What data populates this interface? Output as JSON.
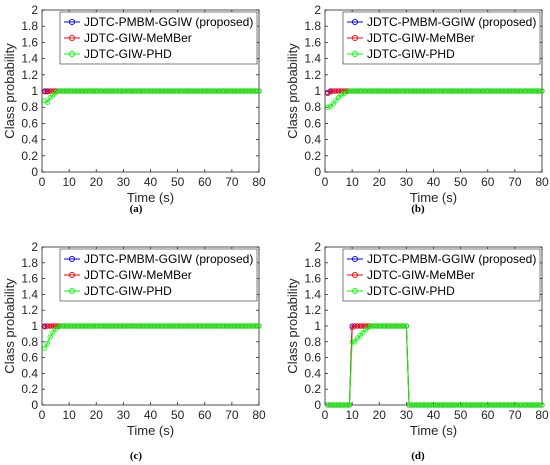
{
  "colors": {
    "JDTC-PMBM-GGIW (proposed)": "#0000ff",
    "JDTC-GIW-MeMBer": "#ff0000",
    "JDTC-GIW-PHD": "#00ff00",
    "axis": "#262626"
  },
  "chart_data": [
    {
      "type": "line",
      "caption": "(a)",
      "xlabel": "Time (s)",
      "ylabel": "Class probability",
      "xlim": [
        0,
        80
      ],
      "ylim": [
        0,
        2
      ],
      "xticks": [
        0,
        10,
        20,
        30,
        40,
        50,
        60,
        70,
        80
      ],
      "yticks": [
        0,
        0.2,
        0.4,
        0.6,
        0.8,
        1,
        1.2,
        1.4,
        1.6,
        1.8,
        2
      ],
      "legend": "top-right",
      "marker": "circle",
      "series": [
        {
          "name": "JDTC-PMBM-GGIW (proposed)",
          "segments": [
            {
              "x_start": 1,
              "x_end": 80,
              "early": [
                1,
                1,
                1,
                1,
                1,
                1,
                1
              ],
              "late": 1
            }
          ]
        },
        {
          "name": "JDTC-GIW-MeMBer",
          "segments": [
            {
              "x_start": 1,
              "x_end": 80,
              "early": [
                0.99,
                0.99,
                1,
                1,
                1,
                1,
                1
              ],
              "late": 1
            }
          ]
        },
        {
          "name": "JDTC-GIW-PHD",
          "segments": [
            {
              "x_start": 1,
              "x_end": 80,
              "early": [
                0.88,
                0.86,
                0.92,
                0.95,
                0.98,
                1,
                1
              ],
              "late": 1
            }
          ]
        }
      ]
    },
    {
      "type": "line",
      "caption": "(b)",
      "xlabel": "Time (s)",
      "ylabel": "Class probability",
      "xlim": [
        0,
        80
      ],
      "ylim": [
        0,
        2
      ],
      "xticks": [
        0,
        10,
        20,
        30,
        40,
        50,
        60,
        70,
        80
      ],
      "yticks": [
        0,
        0.2,
        0.4,
        0.6,
        0.8,
        1,
        1.2,
        1.4,
        1.6,
        1.8,
        2
      ],
      "legend": "top-right",
      "marker": "circle",
      "series": [
        {
          "name": "JDTC-PMBM-GGIW (proposed)",
          "segments": [
            {
              "x_start": 1,
              "x_end": 80,
              "early": [
                0.98,
                1,
                1,
                1,
                1,
                1,
                1,
                1,
                1,
                1
              ],
              "late": 1
            }
          ]
        },
        {
          "name": "JDTC-GIW-MeMBer",
          "segments": [
            {
              "x_start": 1,
              "x_end": 80,
              "early": [
                0.97,
                0.99,
                1,
                1,
                1,
                1,
                1,
                1,
                1,
                1
              ],
              "late": 1
            }
          ]
        },
        {
          "name": "JDTC-GIW-PHD",
          "segments": [
            {
              "x_start": 1,
              "x_end": 80,
              "early": [
                0.8,
                0.81,
                0.84,
                0.88,
                0.92,
                0.95,
                0.97,
                0.99,
                1,
                1
              ],
              "late": 1
            }
          ]
        }
      ]
    },
    {
      "type": "line",
      "caption": "(c)",
      "xlabel": "Time (s)",
      "ylabel": "Class probability",
      "xlim": [
        0,
        80
      ],
      "ylim": [
        0,
        2
      ],
      "xticks": [
        0,
        10,
        20,
        30,
        40,
        50,
        60,
        70,
        80
      ],
      "yticks": [
        0,
        0.2,
        0.4,
        0.6,
        0.8,
        1,
        1.2,
        1.4,
        1.6,
        1.8,
        2
      ],
      "legend": "top-right",
      "marker": "circle",
      "series": [
        {
          "name": "JDTC-PMBM-GGIW (proposed)",
          "segments": [
            {
              "x_start": 1,
              "x_end": 80,
              "early": [
                1,
                1,
                1,
                1,
                1,
                1,
                1
              ],
              "late": 1
            }
          ]
        },
        {
          "name": "JDTC-GIW-MeMBer",
          "segments": [
            {
              "x_start": 1,
              "x_end": 80,
              "early": [
                0.99,
                1,
                1,
                1,
                1,
                1,
                1
              ],
              "late": 1
            }
          ]
        },
        {
          "name": "JDTC-GIW-PHD",
          "segments": [
            {
              "x_start": 1,
              "x_end": 80,
              "early": [
                0.72,
                0.78,
                0.86,
                0.92,
                0.96,
                0.99,
                1
              ],
              "late": 1
            }
          ]
        }
      ]
    },
    {
      "type": "line",
      "caption": "(d)",
      "xlabel": "Time (s)",
      "ylabel": "Class probability",
      "xlim": [
        0,
        80
      ],
      "ylim": [
        0,
        2
      ],
      "xticks": [
        0,
        10,
        20,
        30,
        40,
        50,
        60,
        70,
        80
      ],
      "yticks": [
        0,
        0.2,
        0.4,
        0.6,
        0.8,
        1,
        1.2,
        1.4,
        1.6,
        1.8,
        2
      ],
      "legend": "top-right",
      "marker": "circle",
      "series": [
        {
          "name": "JDTC-PMBM-GGIW (proposed)",
          "segments": [
            {
              "x_start": 1,
              "x_end": 9,
              "early": [],
              "late": 0
            },
            {
              "x_start": 10,
              "x_end": 30,
              "early": [
                1,
                1,
                1,
                1,
                1,
                1
              ],
              "late": 1
            },
            {
              "x_start": 31,
              "x_end": 80,
              "early": [],
              "late": 0
            }
          ]
        },
        {
          "name": "JDTC-GIW-MeMBer",
          "segments": [
            {
              "x_start": 1,
              "x_end": 9,
              "early": [],
              "late": 0
            },
            {
              "x_start": 10,
              "x_end": 30,
              "early": [
                0.98,
                1,
                1,
                1,
                1,
                1
              ],
              "late": 1
            },
            {
              "x_start": 31,
              "x_end": 80,
              "early": [],
              "late": 0
            }
          ]
        },
        {
          "name": "JDTC-GIW-PHD",
          "segments": [
            {
              "x_start": 1,
              "x_end": 9,
              "early": [],
              "late": 0
            },
            {
              "x_start": 10,
              "x_end": 30,
              "early": [
                0.8,
                0.8,
                0.85,
                0.88,
                0.92,
                0.95,
                0.98,
                1
              ],
              "late": 1
            },
            {
              "x_start": 31,
              "x_end": 80,
              "early": [],
              "late": 0
            }
          ]
        }
      ]
    }
  ]
}
